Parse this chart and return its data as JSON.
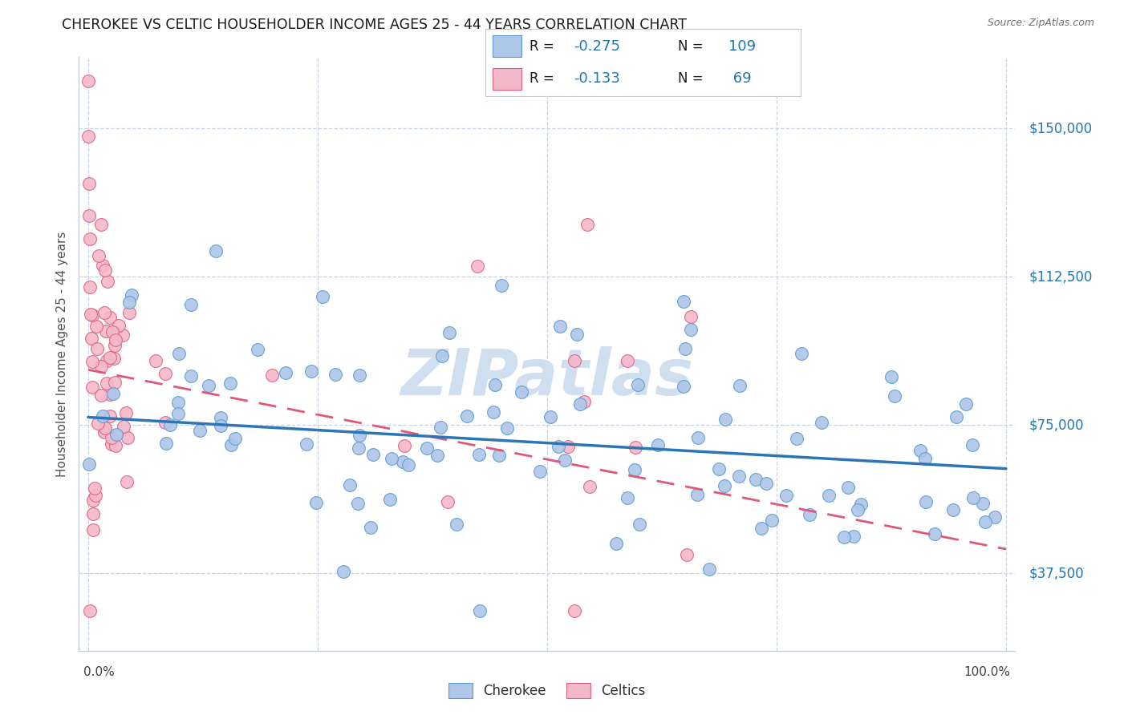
{
  "title": "CHEROKEE VS CELTIC HOUSEHOLDER INCOME AGES 25 - 44 YEARS CORRELATION CHART",
  "source": "Source: ZipAtlas.com",
  "ylabel": "Householder Income Ages 25 - 44 years",
  "yticks": [
    37500,
    75000,
    112500,
    150000
  ],
  "ytick_labels": [
    "$37,500",
    "$75,000",
    "$112,500",
    "$150,000"
  ],
  "ylim": [
    18000,
    168000
  ],
  "xlim": [
    -0.01,
    1.01
  ],
  "cherokee_R": "-0.275",
  "cherokee_N": "109",
  "celtics_R": "-0.133",
  "celtics_N": "69",
  "cherokee_color": "#aec6e8",
  "cherokee_edge_color": "#5b9bd5",
  "cherokee_line_color": "#2e75b6",
  "celtics_color": "#f4b8cb",
  "celtics_edge_color": "#e06080",
  "celtics_line_color": "#e05878",
  "watermark": "ZIPatlas",
  "watermark_color": "#d0dff0",
  "background_color": "#ffffff",
  "grid_color": "#c8d4e4",
  "title_color": "#1a1a1a",
  "axis_label_color": "#1f77b4",
  "text_color": "#303030",
  "legend_value_color": "#1f77b4",
  "ch_trend_y0": 77000,
  "ch_trend_y1": 64000,
  "cel_trend_y0": 89000,
  "cel_trend_y1": 55000,
  "cel_trend_x1": 0.75
}
